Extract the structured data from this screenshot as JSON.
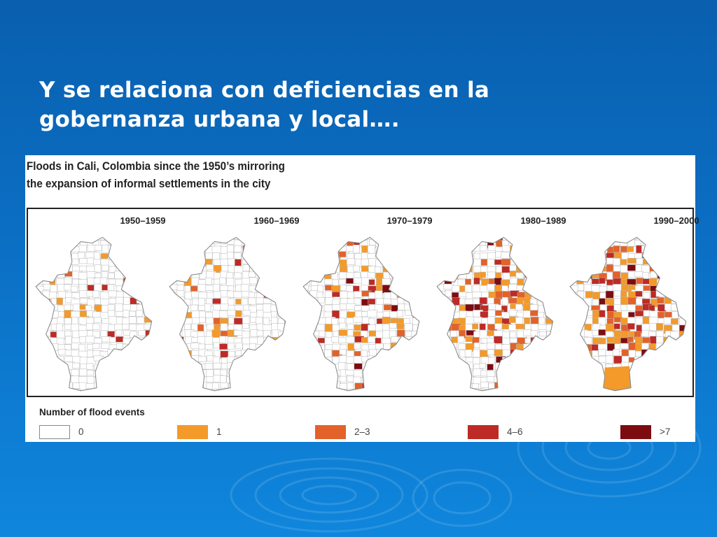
{
  "slide": {
    "title_line1": "Y se relaciona con deficiencias en la",
    "title_line2": "gobernanza urbana y local…."
  },
  "figure": {
    "title_line1": "Floods in Cali, Colombia since the 1950’s mirroring",
    "title_line2": "the expansion of informal settlements in the city",
    "panels": [
      {
        "label": "1950–1959"
      },
      {
        "label": "1960–1969"
      },
      {
        "label": "1970–1979"
      },
      {
        "label": "1980–1989"
      },
      {
        "label": "1990–2000"
      }
    ],
    "legend": {
      "title": "Number of flood events",
      "items": [
        {
          "label": "0",
          "color": "#ffffff"
        },
        {
          "label": "1",
          "color": "#f39a2a"
        },
        {
          "label": "2–3",
          "color": "#e2622a"
        },
        {
          "label": "4–6",
          "color": "#be2a25"
        },
        {
          "label": ">7",
          "color": "#7d0c10"
        }
      ]
    }
  },
  "colors": {
    "background_top": "#0a5fae",
    "background_bottom": "#0f86dc"
  }
}
